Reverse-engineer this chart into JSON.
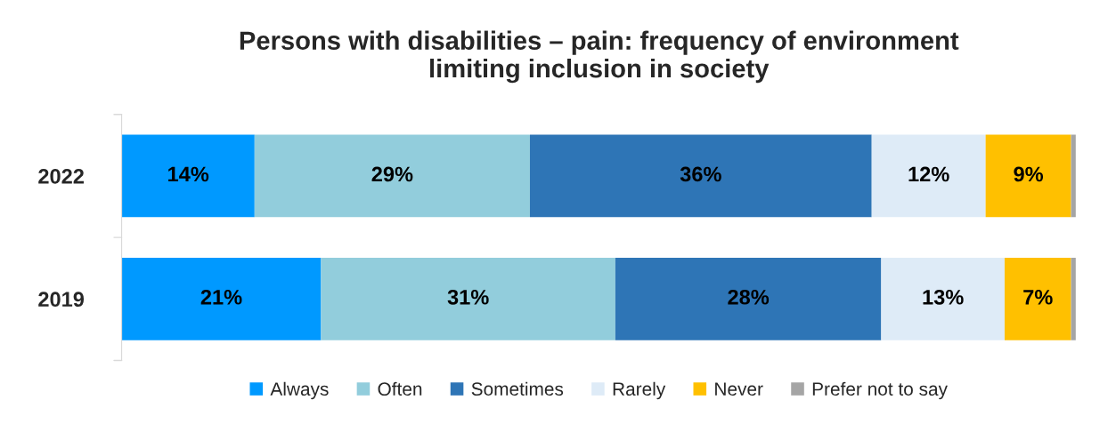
{
  "chart_data": {
    "type": "bar",
    "orientation": "horizontal",
    "stacked": true,
    "title": "Persons with disabilities – pain: frequency of environment\nlimiting inclusion in society",
    "categories": [
      "2022",
      "2019"
    ],
    "series": [
      {
        "name": "Always",
        "color": "#0099ff",
        "values": [
          14,
          21
        ],
        "value_labels": [
          "14%",
          "21%"
        ]
      },
      {
        "name": "Often",
        "color": "#92cddc",
        "values": [
          29,
          31
        ],
        "value_labels": [
          "29%",
          "31%"
        ]
      },
      {
        "name": "Sometimes",
        "color": "#2e75b6",
        "values": [
          36,
          28
        ],
        "value_labels": [
          "36%",
          "28%"
        ]
      },
      {
        "name": "Rarely",
        "color": "#deebf7",
        "values": [
          12,
          13
        ],
        "value_labels": [
          "12%",
          "13%"
        ]
      },
      {
        "name": "Never",
        "color": "#ffc000",
        "values": [
          9,
          7
        ],
        "value_labels": [
          "9%",
          "7%"
        ]
      },
      {
        "name": "Prefer not to say",
        "color": "#a5a5a5",
        "values": [
          0.5,
          0.5
        ],
        "value_labels": [
          null,
          null
        ]
      }
    ],
    "legend": "bottom",
    "grid": false
  }
}
